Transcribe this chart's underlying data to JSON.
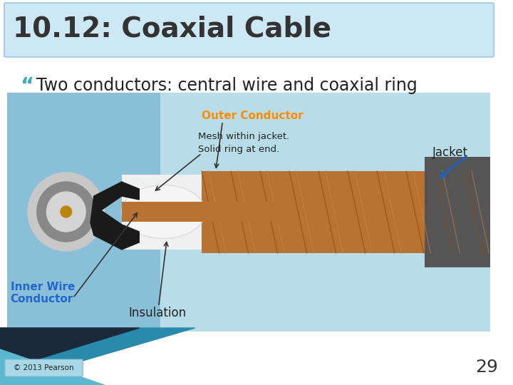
{
  "title": "10.12: Coaxial Cable",
  "title_bg_color_top": "#cce8f4",
  "title_border_color": "#a0c8e0",
  "title_text_color": "#333333",
  "title_fontsize": 28,
  "bullet_text": "Two conductors: central wire and coaxial ring",
  "bullet_text_color": "#222222",
  "bullet_fontsize": 17,
  "bullet_quote_color": "#3aaabf",
  "slide_bg": "#ffffff",
  "footer_text": "© 2013 Pearson",
  "page_number": "29",
  "image_placeholder_bg": "#b8dce8"
}
